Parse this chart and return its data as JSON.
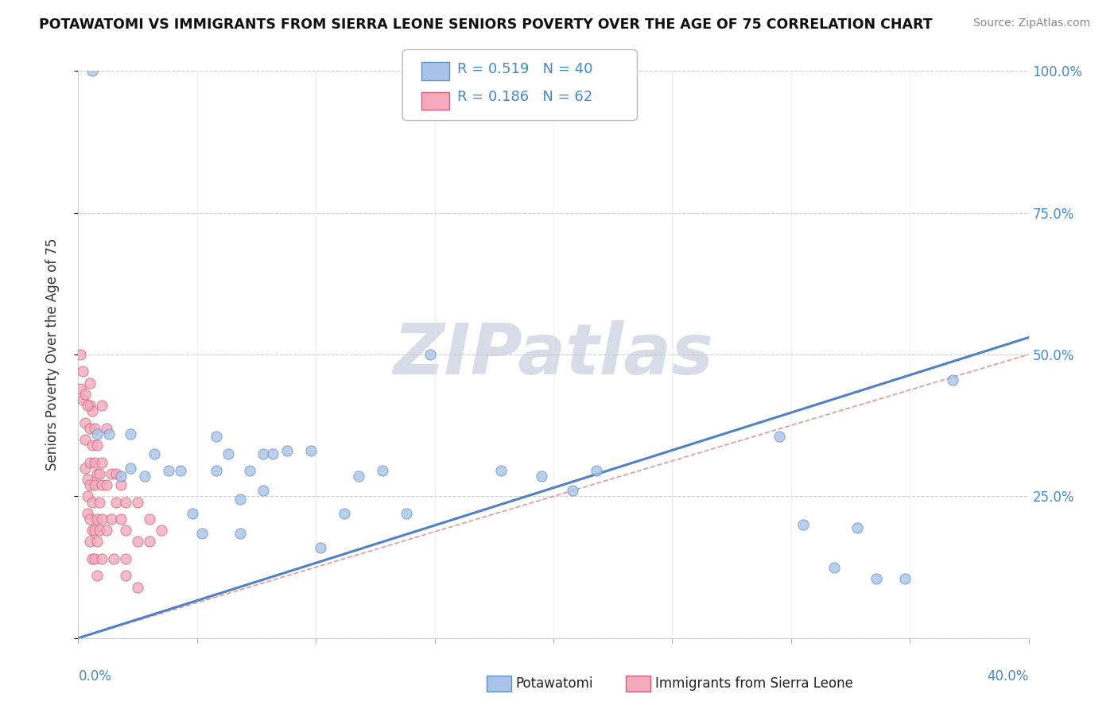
{
  "title": "POTAWATOMI VS IMMIGRANTS FROM SIERRA LEONE SENIORS POVERTY OVER THE AGE OF 75 CORRELATION CHART",
  "source_text": "Source: ZipAtlas.com",
  "ylabel": "Seniors Poverty Over the Age of 75",
  "xlim": [
    0,
    0.4
  ],
  "ylim": [
    0,
    1.0
  ],
  "ytick_vals": [
    0.0,
    0.25,
    0.5,
    0.75,
    1.0
  ],
  "ytick_labels": [
    "",
    "25.0%",
    "50.0%",
    "75.0%",
    "100.0%"
  ],
  "legend1_r": "0.519",
  "legend1_n": "40",
  "legend2_r": "0.186",
  "legend2_n": "62",
  "blue_color": "#a8c4e8",
  "blue_edge": "#6090cc",
  "pink_color": "#f4aabb",
  "pink_edge": "#d06080",
  "trend_blue": "#5080c8",
  "trend_dashed_color": "#cc8888",
  "watermark_color": "#d8dce8",
  "blue_scatter": [
    [
      0.008,
      0.36
    ],
    [
      0.013,
      0.36
    ],
    [
      0.018,
      0.285
    ],
    [
      0.022,
      0.3
    ],
    [
      0.028,
      0.285
    ],
    [
      0.032,
      0.325
    ],
    [
      0.038,
      0.295
    ],
    [
      0.043,
      0.295
    ],
    [
      0.048,
      0.22
    ],
    [
      0.052,
      0.185
    ],
    [
      0.058,
      0.295
    ],
    [
      0.063,
      0.325
    ],
    [
      0.068,
      0.185
    ],
    [
      0.072,
      0.295
    ],
    [
      0.078,
      0.325
    ],
    [
      0.082,
      0.325
    ],
    [
      0.088,
      0.33
    ],
    [
      0.098,
      0.33
    ],
    [
      0.102,
      0.16
    ],
    [
      0.112,
      0.22
    ],
    [
      0.118,
      0.285
    ],
    [
      0.128,
      0.295
    ],
    [
      0.138,
      0.22
    ],
    [
      0.148,
      0.5
    ],
    [
      0.178,
      0.295
    ],
    [
      0.195,
      0.285
    ],
    [
      0.208,
      0.26
    ],
    [
      0.218,
      0.295
    ],
    [
      0.295,
      0.355
    ],
    [
      0.305,
      0.2
    ],
    [
      0.318,
      0.125
    ],
    [
      0.328,
      0.195
    ],
    [
      0.336,
      0.105
    ],
    [
      0.348,
      0.105
    ],
    [
      0.368,
      0.455
    ],
    [
      0.006,
      1.0
    ],
    [
      0.022,
      0.36
    ],
    [
      0.058,
      0.355
    ],
    [
      0.068,
      0.245
    ],
    [
      0.078,
      0.26
    ]
  ],
  "pink_scatter": [
    [
      0.002,
      0.42
    ],
    [
      0.003,
      0.38
    ],
    [
      0.003,
      0.35
    ],
    [
      0.003,
      0.3
    ],
    [
      0.004,
      0.28
    ],
    [
      0.004,
      0.25
    ],
    [
      0.004,
      0.22
    ],
    [
      0.005,
      0.45
    ],
    [
      0.005,
      0.41
    ],
    [
      0.005,
      0.37
    ],
    [
      0.005,
      0.31
    ],
    [
      0.005,
      0.27
    ],
    [
      0.005,
      0.21
    ],
    [
      0.005,
      0.17
    ],
    [
      0.006,
      0.4
    ],
    [
      0.006,
      0.34
    ],
    [
      0.006,
      0.24
    ],
    [
      0.006,
      0.19
    ],
    [
      0.006,
      0.14
    ],
    [
      0.007,
      0.37
    ],
    [
      0.007,
      0.31
    ],
    [
      0.007,
      0.27
    ],
    [
      0.007,
      0.19
    ],
    [
      0.007,
      0.14
    ],
    [
      0.008,
      0.34
    ],
    [
      0.008,
      0.29
    ],
    [
      0.008,
      0.21
    ],
    [
      0.008,
      0.17
    ],
    [
      0.009,
      0.29
    ],
    [
      0.009,
      0.24
    ],
    [
      0.009,
      0.19
    ],
    [
      0.01,
      0.41
    ],
    [
      0.01,
      0.31
    ],
    [
      0.01,
      0.27
    ],
    [
      0.01,
      0.21
    ],
    [
      0.012,
      0.37
    ],
    [
      0.012,
      0.27
    ],
    [
      0.012,
      0.19
    ],
    [
      0.014,
      0.29
    ],
    [
      0.014,
      0.21
    ],
    [
      0.016,
      0.29
    ],
    [
      0.016,
      0.24
    ],
    [
      0.018,
      0.27
    ],
    [
      0.018,
      0.21
    ],
    [
      0.02,
      0.24
    ],
    [
      0.02,
      0.19
    ],
    [
      0.02,
      0.14
    ],
    [
      0.025,
      0.24
    ],
    [
      0.025,
      0.17
    ],
    [
      0.03,
      0.21
    ],
    [
      0.03,
      0.17
    ],
    [
      0.035,
      0.19
    ],
    [
      0.001,
      0.5
    ],
    [
      0.001,
      0.44
    ],
    [
      0.002,
      0.47
    ],
    [
      0.003,
      0.43
    ],
    [
      0.004,
      0.41
    ],
    [
      0.01,
      0.14
    ],
    [
      0.008,
      0.11
    ],
    [
      0.015,
      0.14
    ],
    [
      0.02,
      0.11
    ],
    [
      0.025,
      0.09
    ]
  ],
  "blue_line_x": [
    0.0,
    0.4
  ],
  "blue_line_y": [
    0.0,
    0.53
  ],
  "dashed_line_x": [
    0.0,
    0.4
  ],
  "dashed_line_y": [
    0.0,
    0.5
  ]
}
